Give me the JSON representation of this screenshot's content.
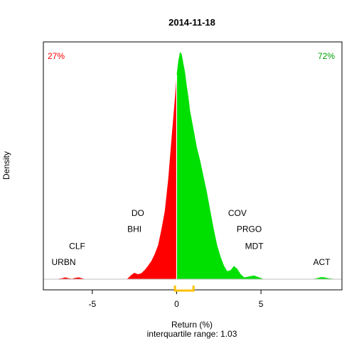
{
  "chart_data": {
    "type": "area",
    "title": "2014-11-18",
    "xlabel": "Return (%)",
    "ylabel": "Density",
    "subtitle": "interquartile range: 1.03",
    "xlim": [
      -7.9,
      9.8
    ],
    "ylim": [
      0,
      1
    ],
    "x_ticks": [
      -5,
      0,
      5
    ],
    "negative_share": "27%",
    "positive_share": "72%",
    "negative_color": "#ff0000",
    "positive_color": "#00e000",
    "iqr_color": "#ffc000",
    "iqr_range": [
      -0.1,
      1.0
    ],
    "density": {
      "x": [
        -7.2,
        -6.8,
        -6.6,
        -6.4,
        -6.2,
        -6.0,
        -5.8,
        -5.6,
        -5.4,
        -5.0,
        -4.5,
        -4.0,
        -3.5,
        -3.0,
        -2.9,
        -2.7,
        -2.5,
        -2.3,
        -2.1,
        -1.9,
        -1.7,
        -1.5,
        -1.3,
        -1.1,
        -0.9,
        -0.7,
        -0.5,
        -0.3,
        -0.1,
        0.0,
        0.1,
        0.2,
        0.3,
        0.4,
        0.5,
        0.6,
        0.7,
        0.8,
        1.0,
        1.2,
        1.4,
        1.6,
        1.8,
        2.0,
        2.2,
        2.4,
        2.6,
        2.8,
        3.0,
        3.2,
        3.4,
        3.6,
        3.8,
        4.0,
        4.2,
        4.4,
        4.6,
        4.8,
        5.0,
        5.2,
        5.6,
        6.0,
        7.0,
        8.0,
        8.3,
        8.5,
        8.7,
        8.9,
        9.1,
        9.6
      ],
      "y": [
        0.0,
        0.004,
        0.008,
        0.004,
        0.002,
        0.006,
        0.008,
        0.004,
        0.0,
        0.0,
        0.0,
        0.0,
        0.0,
        0.0,
        0.003,
        0.018,
        0.028,
        0.022,
        0.026,
        0.04,
        0.058,
        0.08,
        0.11,
        0.15,
        0.22,
        0.3,
        0.44,
        0.62,
        0.8,
        0.9,
        0.96,
        1.0,
        0.99,
        0.95,
        0.91,
        0.85,
        0.8,
        0.74,
        0.66,
        0.58,
        0.52,
        0.45,
        0.38,
        0.3,
        0.22,
        0.15,
        0.1,
        0.06,
        0.035,
        0.04,
        0.058,
        0.045,
        0.022,
        0.008,
        0.01,
        0.014,
        0.016,
        0.01,
        0.005,
        0.0,
        0.0,
        0.0,
        0.0,
        0.0,
        0.004,
        0.008,
        0.009,
        0.006,
        0.003,
        0.0
      ]
    },
    "annotations": [
      {
        "text": "URBN",
        "x": -6.7,
        "y": 0.075
      },
      {
        "text": "CLF",
        "x": -5.9,
        "y": 0.145
      },
      {
        "text": "DO",
        "x": -2.3,
        "y": 0.29
      },
      {
        "text": "BHI",
        "x": -2.5,
        "y": 0.22
      },
      {
        "text": "COV",
        "x": 3.6,
        "y": 0.29
      },
      {
        "text": "PRGO",
        "x": 4.3,
        "y": 0.22
      },
      {
        "text": "MDT",
        "x": 4.6,
        "y": 0.145
      },
      {
        "text": "ACT",
        "x": 8.6,
        "y": 0.075
      }
    ]
  }
}
